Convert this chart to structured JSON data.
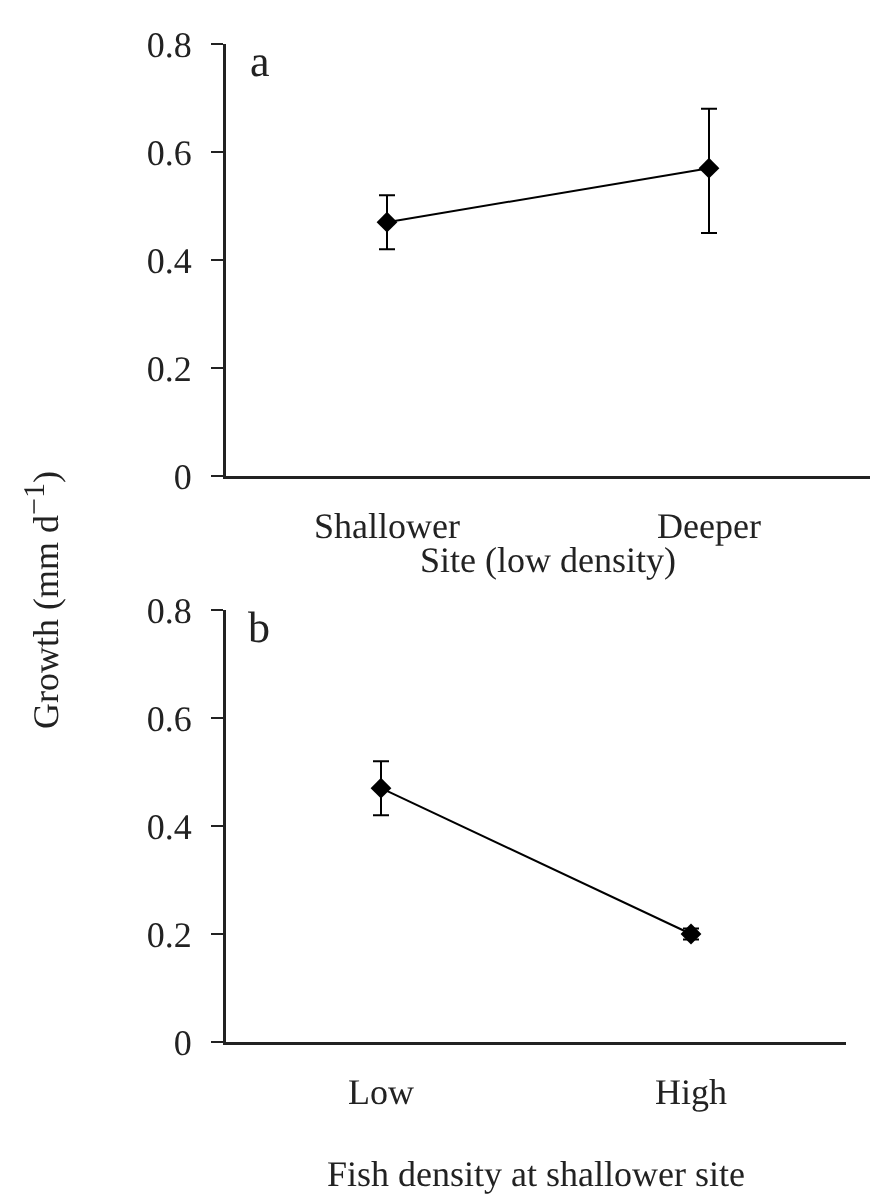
{
  "chart_data": [
    {
      "type": "line",
      "categories": [
        "Shallower",
        "Deeper"
      ],
      "xlabel": "Site (low density)",
      "ylabel": "Growth (mm d$^{−1}$)",
      "annotations": [
        "a"
      ],
      "series": [
        {
          "color": "#000000",
          "values": [
            0.47,
            0.57
          ],
          "errors": [
            [
              0.42,
              0.52
            ],
            [
              0.45,
              0.68
            ]
          ]
        }
      ],
      "ylim": [
        0,
        0.8
      ],
      "yticks": [
        0,
        0.2,
        0.4,
        0.6,
        0.8
      ],
      "marker": "diamond",
      "line_style": "solid"
    },
    {
      "type": "line",
      "categories": [
        "Low",
        "High"
      ],
      "xlabel": "Fish density at shallower site",
      "annotations": [
        "b"
      ],
      "series": [
        {
          "color": "#000000",
          "values": [
            0.47,
            0.2
          ],
          "errors": [
            [
              0.42,
              0.52
            ],
            [
              0.19,
              0.21
            ]
          ]
        }
      ],
      "ylim": [
        0,
        0.8
      ],
      "yticks": [
        0,
        0.2,
        0.4,
        0.6,
        0.8
      ],
      "marker": "diamond",
      "line_style": "solid"
    }
  ]
}
